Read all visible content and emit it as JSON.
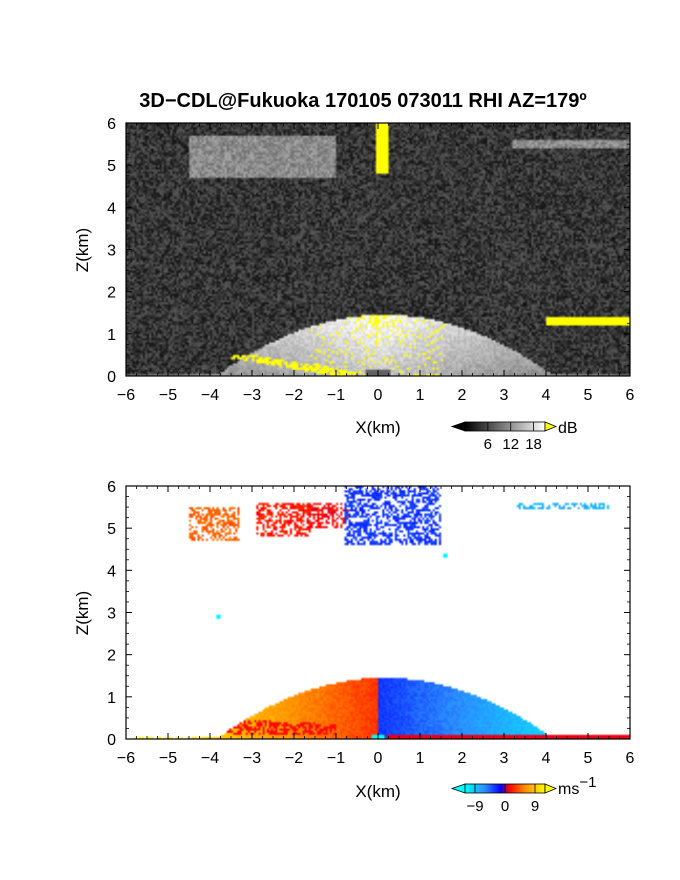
{
  "chart_data": [
    {
      "type": "heatmap",
      "title": "3D−CDL@Fukuoka 170105 073011 RHI AZ=179º",
      "xlabel": "X(km)",
      "ylabel": "Z(km)",
      "xlim": [
        -6,
        6
      ],
      "ylim": [
        0,
        6
      ],
      "x_ticks": [
        "−6",
        "−5",
        "−4",
        "−3",
        "−2",
        "−1",
        "0",
        "1",
        "2",
        "3",
        "4",
        "5",
        "6"
      ],
      "y_ticks": [
        "0",
        "1",
        "2",
        "3",
        "4",
        "5",
        "6"
      ],
      "grid": false,
      "colormap": "grayscale with yellow above max",
      "colorbar": {
        "unit": "dB",
        "ticks": [
          "6",
          "12",
          "18"
        ],
        "range": [
          0,
          21
        ]
      },
      "features": [
        {
          "kind": "low-level echo",
          "x_range": [
            -6,
            6
          ],
          "z_top_at_center_km": 1.45,
          "max_dB": 20
        },
        {
          "kind": "near-surface strong echo band",
          "x_range": [
            -3.5,
            -0.5
          ],
          "z_range": [
            0,
            0.5
          ],
          "dB": 21
        },
        {
          "kind": "zenith strong echo",
          "x_range": [
            -0.05,
            0.25
          ],
          "z_range": [
            4.8,
            6
          ],
          "dB": 21
        },
        {
          "kind": "upper cloud",
          "x_range": [
            -4.5,
            -1.0
          ],
          "z_range": [
            4.7,
            5.7
          ],
          "dB": 9
        },
        {
          "kind": "upper cloud",
          "x_range": [
            3.2,
            6.0
          ],
          "z_range": [
            5.4,
            5.6
          ],
          "dB": 9
        },
        {
          "kind": "strong echo near cloud base",
          "x_range": [
            4.0,
            6.0
          ],
          "z_range": [
            1.2,
            1.4
          ],
          "dB": 21
        }
      ]
    },
    {
      "type": "heatmap",
      "title": "",
      "xlabel": "X(km)",
      "ylabel": "Z(km)",
      "xlim": [
        -6,
        6
      ],
      "ylim": [
        0,
        6
      ],
      "x_ticks": [
        "−6",
        "−5",
        "−4",
        "−3",
        "−2",
        "−1",
        "0",
        "1",
        "2",
        "3",
        "4",
        "5",
        "6"
      ],
      "y_ticks": [
        "0",
        "1",
        "2",
        "3",
        "4",
        "5",
        "6"
      ],
      "grid": false,
      "colormap": "cyan-blue-red-orange-yellow (diverging)",
      "colorbar": {
        "unit": "ms",
        "unit_exponent": "−1",
        "ticks": [
          "−9",
          "0",
          "9"
        ],
        "range": [
          -12,
          12
        ]
      },
      "features": [
        {
          "kind": "low-level flow, left side",
          "x_range": [
            -5.8,
            0
          ],
          "z_range": [
            0,
            1.45
          ],
          "velocity_ms": [
            3,
            12
          ]
        },
        {
          "kind": "low-level flow, right side",
          "x_range": [
            0,
            6
          ],
          "z_range": [
            0,
            1.45
          ],
          "velocity_ms": [
            -12,
            -3
          ]
        },
        {
          "kind": "near-surface return",
          "x_range": [
            0.2,
            6
          ],
          "z_range": [
            0,
            0.12
          ],
          "velocity_ms": 1
        },
        {
          "kind": "upper cloud",
          "x_range": [
            -4.5,
            -3.3
          ],
          "z_range": [
            4.7,
            5.5
          ],
          "velocity_ms": 4.5
        },
        {
          "kind": "upper cloud",
          "x_range": [
            -2.9,
            -1.6
          ],
          "z_range": [
            4.8,
            5.6
          ],
          "velocity_ms": 2
        },
        {
          "kind": "upper cloud",
          "x_range": [
            -1.7,
            -0.7
          ],
          "z_range": [
            5.0,
            5.6
          ],
          "velocity_ms": 1.5
        },
        {
          "kind": "upper cloud",
          "x_range": [
            -0.8,
            1.5
          ],
          "z_range": [
            4.6,
            6.0
          ],
          "velocity_ms": -3
        },
        {
          "kind": "upper cloud",
          "x_range": [
            3.3,
            5.5
          ],
          "z_range": [
            5.45,
            5.62
          ],
          "velocity_ms": -8
        },
        {
          "kind": "isolated pixel",
          "x_range": [
            -3.85,
            -3.75
          ],
          "z_range": [
            2.83,
            2.93
          ],
          "velocity_ms": -12
        },
        {
          "kind": "isolated pixel",
          "x_range": [
            1.55,
            1.65
          ],
          "z_range": [
            4.28,
            4.38
          ],
          "velocity_ms": -12
        }
      ]
    }
  ]
}
